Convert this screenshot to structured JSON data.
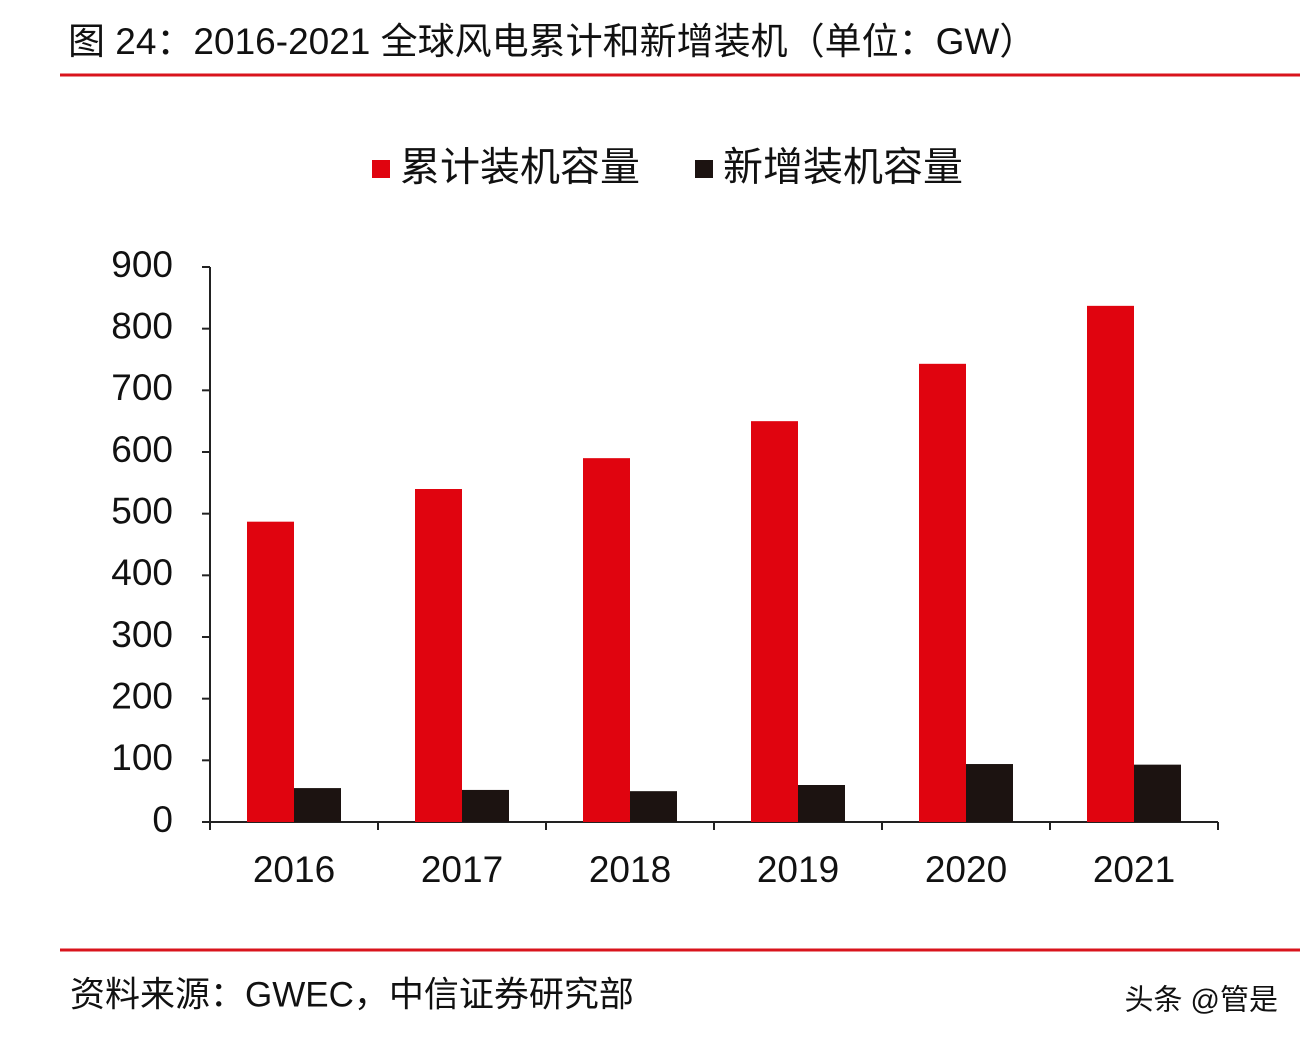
{
  "chart_data": {
    "type": "bar",
    "title": "图 24：2016-2021 全球风电累计和新增装机（单位：GW）",
    "source": "资料来源：GWEC，中信证券研究部",
    "watermark": "头条 @管是",
    "categories": [
      "2016",
      "2017",
      "2018",
      "2019",
      "2020",
      "2021"
    ],
    "series": [
      {
        "name": "累计装机容量",
        "color": "#e0040f",
        "values": [
          487,
          540,
          590,
          650,
          743,
          837
        ]
      },
      {
        "name": "新增装机容量",
        "color": "#1c1311",
        "values": [
          55,
          52,
          50,
          60,
          94,
          93
        ]
      }
    ],
    "ylim": [
      0,
      900
    ],
    "yticks": [
      0,
      100,
      200,
      300,
      400,
      500,
      600,
      700,
      800,
      900
    ],
    "grid": false,
    "legend": "top"
  }
}
